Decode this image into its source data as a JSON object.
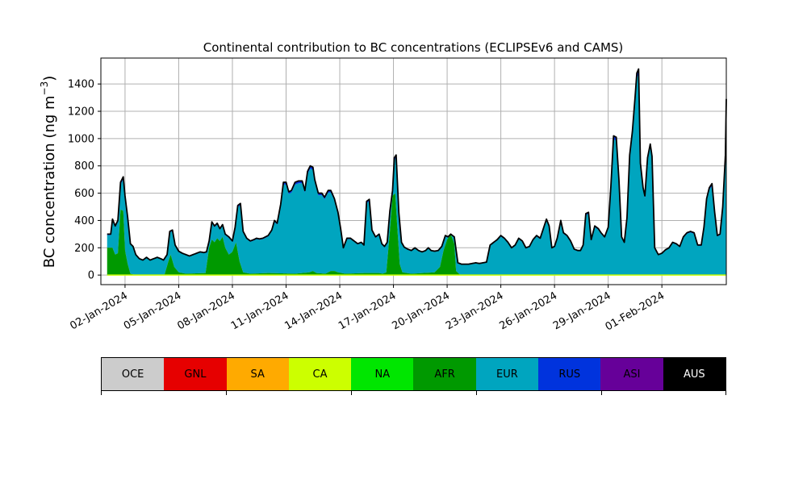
{
  "chart_data": {
    "type": "area",
    "title": "Continental contribution to BC concentrations (ECLIPSEv6 and CAMS)",
    "ylabel": "BC concentration (ng m",
    "ylabel_sup": "−3",
    "ylabel_close": ")",
    "xlabel": "",
    "ylim": [
      -70,
      1590
    ],
    "grid": true,
    "x_start": "2024-01-01",
    "x_range_days": [
      -0.35,
      34.6
    ],
    "x_ticks": [
      {
        "day": 1,
        "label": "02-Jan-2024"
      },
      {
        "day": 4,
        "label": "05-Jan-2024"
      },
      {
        "day": 7,
        "label": "08-Jan-2024"
      },
      {
        "day": 10,
        "label": "11-Jan-2024"
      },
      {
        "day": 13,
        "label": "14-Jan-2024"
      },
      {
        "day": 16,
        "label": "17-Jan-2024"
      },
      {
        "day": 19,
        "label": "20-Jan-2024"
      },
      {
        "day": 22,
        "label": "23-Jan-2024"
      },
      {
        "day": 25,
        "label": "26-Jan-2024"
      },
      {
        "day": 28,
        "label": "29-Jan-2024"
      },
      {
        "day": 31,
        "label": "01-Feb-2024"
      }
    ],
    "y_ticks": [
      0,
      200,
      400,
      600,
      800,
      1000,
      1200,
      1400
    ],
    "total_series": [
      [
        0.0,
        300
      ],
      [
        0.2,
        300
      ],
      [
        0.3,
        410
      ],
      [
        0.45,
        360
      ],
      [
        0.6,
        400
      ],
      [
        0.75,
        680
      ],
      [
        0.9,
        720
      ],
      [
        1.0,
        580
      ],
      [
        1.15,
        420
      ],
      [
        1.3,
        230
      ],
      [
        1.45,
        210
      ],
      [
        1.6,
        150
      ],
      [
        1.8,
        120
      ],
      [
        2.0,
        110
      ],
      [
        2.2,
        130
      ],
      [
        2.4,
        110
      ],
      [
        2.6,
        120
      ],
      [
        2.8,
        130
      ],
      [
        3.0,
        120
      ],
      [
        3.15,
        110
      ],
      [
        3.35,
        150
      ],
      [
        3.5,
        320
      ],
      [
        3.65,
        330
      ],
      [
        3.8,
        220
      ],
      [
        4.0,
        175
      ],
      [
        4.2,
        160
      ],
      [
        4.4,
        150
      ],
      [
        4.6,
        140
      ],
      [
        4.8,
        150
      ],
      [
        5.0,
        160
      ],
      [
        5.2,
        170
      ],
      [
        5.4,
        165
      ],
      [
        5.55,
        170
      ],
      [
        5.7,
        250
      ],
      [
        5.85,
        390
      ],
      [
        6.0,
        360
      ],
      [
        6.15,
        380
      ],
      [
        6.3,
        340
      ],
      [
        6.45,
        370
      ],
      [
        6.6,
        300
      ],
      [
        6.8,
        280
      ],
      [
        7.0,
        250
      ],
      [
        7.15,
        350
      ],
      [
        7.3,
        510
      ],
      [
        7.45,
        525
      ],
      [
        7.6,
        320
      ],
      [
        7.8,
        270
      ],
      [
        8.0,
        250
      ],
      [
        8.2,
        260
      ],
      [
        8.35,
        270
      ],
      [
        8.5,
        265
      ],
      [
        8.7,
        270
      ],
      [
        8.85,
        280
      ],
      [
        9.0,
        290
      ],
      [
        9.2,
        330
      ],
      [
        9.35,
        400
      ],
      [
        9.5,
        380
      ],
      [
        9.7,
        520
      ],
      [
        9.85,
        680
      ],
      [
        10.0,
        680
      ],
      [
        10.15,
        610
      ],
      [
        10.3,
        620
      ],
      [
        10.5,
        680
      ],
      [
        10.7,
        690
      ],
      [
        10.9,
        690
      ],
      [
        11.05,
        620
      ],
      [
        11.2,
        760
      ],
      [
        11.35,
        800
      ],
      [
        11.5,
        790
      ],
      [
        11.6,
        700
      ],
      [
        11.8,
        600
      ],
      [
        12.0,
        600
      ],
      [
        12.15,
        570
      ],
      [
        12.35,
        620
      ],
      [
        12.5,
        620
      ],
      [
        12.7,
        560
      ],
      [
        12.9,
        460
      ],
      [
        13.05,
        340
      ],
      [
        13.2,
        200
      ],
      [
        13.4,
        270
      ],
      [
        13.6,
        270
      ],
      [
        13.8,
        250
      ],
      [
        14.0,
        230
      ],
      [
        14.2,
        240
      ],
      [
        14.35,
        220
      ],
      [
        14.5,
        540
      ],
      [
        14.65,
        555
      ],
      [
        14.8,
        330
      ],
      [
        15.0,
        280
      ],
      [
        15.2,
        300
      ],
      [
        15.35,
        230
      ],
      [
        15.5,
        210
      ],
      [
        15.65,
        240
      ],
      [
        15.8,
        470
      ],
      [
        15.95,
        620
      ],
      [
        16.05,
        860
      ],
      [
        16.15,
        880
      ],
      [
        16.3,
        460
      ],
      [
        16.45,
        240
      ],
      [
        16.6,
        205
      ],
      [
        16.8,
        190
      ],
      [
        17.0,
        180
      ],
      [
        17.2,
        200
      ],
      [
        17.4,
        180
      ],
      [
        17.6,
        170
      ],
      [
        17.8,
        180
      ],
      [
        17.95,
        200
      ],
      [
        18.1,
        180
      ],
      [
        18.3,
        175
      ],
      [
        18.5,
        180
      ],
      [
        18.7,
        210
      ],
      [
        18.9,
        290
      ],
      [
        19.05,
        280
      ],
      [
        19.2,
        300
      ],
      [
        19.4,
        280
      ],
      [
        19.6,
        90
      ],
      [
        19.8,
        80
      ],
      [
        20.0,
        80
      ],
      [
        20.2,
        80
      ],
      [
        20.4,
        85
      ],
      [
        20.6,
        90
      ],
      [
        20.8,
        85
      ],
      [
        21.0,
        90
      ],
      [
        21.2,
        95
      ],
      [
        21.4,
        220
      ],
      [
        21.6,
        240
      ],
      [
        21.8,
        260
      ],
      [
        22.0,
        290
      ],
      [
        22.2,
        270
      ],
      [
        22.4,
        240
      ],
      [
        22.6,
        200
      ],
      [
        22.8,
        220
      ],
      [
        23.0,
        270
      ],
      [
        23.2,
        250
      ],
      [
        23.4,
        200
      ],
      [
        23.6,
        210
      ],
      [
        23.8,
        260
      ],
      [
        24.0,
        290
      ],
      [
        24.2,
        270
      ],
      [
        24.35,
        330
      ],
      [
        24.55,
        410
      ],
      [
        24.7,
        360
      ],
      [
        24.85,
        200
      ],
      [
        25.0,
        210
      ],
      [
        25.15,
        270
      ],
      [
        25.35,
        400
      ],
      [
        25.5,
        310
      ],
      [
        25.7,
        290
      ],
      [
        25.9,
        250
      ],
      [
        26.1,
        190
      ],
      [
        26.3,
        180
      ],
      [
        26.45,
        180
      ],
      [
        26.6,
        220
      ],
      [
        26.75,
        450
      ],
      [
        26.9,
        460
      ],
      [
        27.05,
        260
      ],
      [
        27.25,
        360
      ],
      [
        27.45,
        340
      ],
      [
        27.6,
        310
      ],
      [
        27.8,
        280
      ],
      [
        28.0,
        350
      ],
      [
        28.15,
        650
      ],
      [
        28.3,
        1020
      ],
      [
        28.45,
        1010
      ],
      [
        28.6,
        700
      ],
      [
        28.75,
        280
      ],
      [
        28.9,
        240
      ],
      [
        29.05,
        420
      ],
      [
        29.2,
        880
      ],
      [
        29.35,
        1050
      ],
      [
        29.5,
        1300
      ],
      [
        29.6,
        1480
      ],
      [
        29.7,
        1510
      ],
      [
        29.8,
        820
      ],
      [
        29.95,
        640
      ],
      [
        30.05,
        580
      ],
      [
        30.2,
        860
      ],
      [
        30.35,
        960
      ],
      [
        30.45,
        870
      ],
      [
        30.6,
        200
      ],
      [
        30.8,
        150
      ],
      [
        31.0,
        160
      ],
      [
        31.2,
        185
      ],
      [
        31.4,
        200
      ],
      [
        31.6,
        240
      ],
      [
        31.8,
        230
      ],
      [
        32.0,
        210
      ],
      [
        32.2,
        280
      ],
      [
        32.4,
        310
      ],
      [
        32.6,
        320
      ],
      [
        32.8,
        310
      ],
      [
        33.0,
        220
      ],
      [
        33.2,
        220
      ],
      [
        33.35,
        350
      ],
      [
        33.5,
        560
      ],
      [
        33.65,
        640
      ],
      [
        33.8,
        670
      ],
      [
        33.95,
        460
      ],
      [
        34.1,
        290
      ],
      [
        34.25,
        300
      ],
      [
        34.4,
        500
      ],
      [
        34.55,
        880
      ],
      [
        34.6,
        1290
      ]
    ],
    "afr_series": [
      [
        0.0,
        200
      ],
      [
        0.3,
        200
      ],
      [
        0.45,
        150
      ],
      [
        0.6,
        160
      ],
      [
        0.75,
        480
      ],
      [
        0.9,
        470
      ],
      [
        1.0,
        180
      ],
      [
        1.15,
        80
      ],
      [
        1.3,
        10
      ],
      [
        1.6,
        0
      ],
      [
        3.2,
        0
      ],
      [
        3.4,
        90
      ],
      [
        3.55,
        150
      ],
      [
        3.75,
        60
      ],
      [
        4.0,
        20
      ],
      [
        4.4,
        10
      ],
      [
        5.5,
        15
      ],
      [
        5.7,
        200
      ],
      [
        5.85,
        260
      ],
      [
        6.0,
        240
      ],
      [
        6.15,
        270
      ],
      [
        6.3,
        250
      ],
      [
        6.45,
        280
      ],
      [
        6.6,
        200
      ],
      [
        6.8,
        150
      ],
      [
        7.0,
        170
      ],
      [
        7.2,
        240
      ],
      [
        7.4,
        100
      ],
      [
        7.6,
        20
      ],
      [
        8.0,
        10
      ],
      [
        9.0,
        15
      ],
      [
        10.5,
        10
      ],
      [
        11.3,
        20
      ],
      [
        11.5,
        30
      ],
      [
        11.7,
        15
      ],
      [
        12.2,
        10
      ],
      [
        12.5,
        30
      ],
      [
        12.7,
        30
      ],
      [
        12.9,
        20
      ],
      [
        13.3,
        10
      ],
      [
        14.4,
        15
      ],
      [
        15.2,
        15
      ],
      [
        15.4,
        10
      ],
      [
        15.6,
        20
      ],
      [
        15.8,
        320
      ],
      [
        15.95,
        580
      ],
      [
        16.1,
        600
      ],
      [
        16.2,
        380
      ],
      [
        16.35,
        80
      ],
      [
        16.5,
        20
      ],
      [
        17.0,
        10
      ],
      [
        18.3,
        20
      ],
      [
        18.6,
        60
      ],
      [
        18.8,
        180
      ],
      [
        19.0,
        260
      ],
      [
        19.2,
        300
      ],
      [
        19.4,
        230
      ],
      [
        19.5,
        30
      ],
      [
        19.7,
        5
      ],
      [
        20.0,
        0
      ],
      [
        21.0,
        0
      ],
      [
        34.6,
        0
      ]
    ],
    "colors": {
      "OCE": "#cccccc",
      "GNL": "#e60000",
      "SA": "#ffaa00",
      "CA": "#ccff00",
      "NA": "#00e600",
      "AFR": "#009900",
      "EUR": "#00a5bf",
      "RUS": "#0033dd",
      "ASI": "#660099",
      "AUS": "#000000"
    },
    "legend": [
      "OCE",
      "GNL",
      "SA",
      "CA",
      "NA",
      "AFR",
      "EUR",
      "RUS",
      "ASI",
      "AUS"
    ],
    "legend_text_colors": {
      "OCE": "#000",
      "GNL": "#000",
      "SA": "#000",
      "CA": "#000",
      "NA": "#000",
      "AFR": "#000",
      "EUR": "#000",
      "RUS": "#000",
      "ASI": "#000",
      "AUS": "#fff"
    }
  }
}
